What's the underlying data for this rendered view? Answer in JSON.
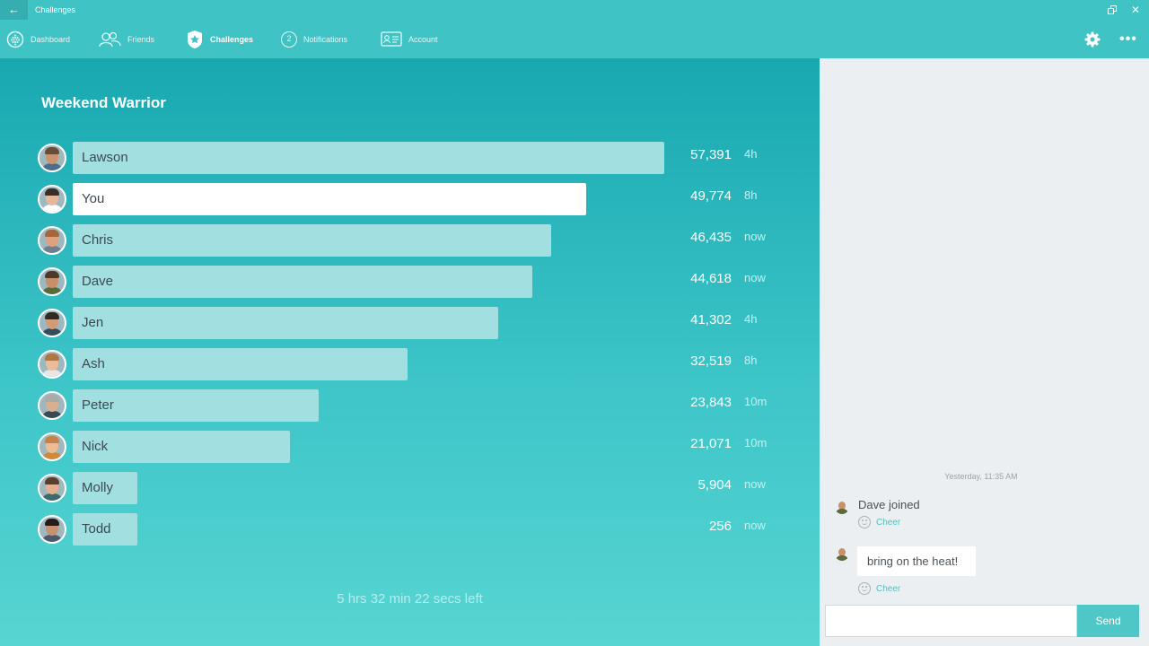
{
  "window": {
    "title": "Challenges",
    "back_glyph": "←",
    "close_glyph": "✕"
  },
  "nav": {
    "items": [
      {
        "label": "Dashboard",
        "icon": "dashboard-icon"
      },
      {
        "label": "Friends",
        "icon": "friends-icon"
      },
      {
        "label": "Challenges",
        "icon": "star-badge-icon",
        "active": true
      },
      {
        "label": "Notifications",
        "icon": "notification-count-icon",
        "badge": "2"
      },
      {
        "label": "Account",
        "icon": "account-card-icon"
      }
    ],
    "more_glyph": "•••"
  },
  "challenge": {
    "title": "Weekend Warrior",
    "time_left": "5 hrs 32 min 22 secs left",
    "max_steps": 57391,
    "participants": [
      {
        "name": "Lawson",
        "steps_label": "57,391",
        "steps": 57391,
        "ago": "4h",
        "you": false
      },
      {
        "name": "You",
        "steps_label": "49,774",
        "steps": 49774,
        "ago": "8h",
        "you": true
      },
      {
        "name": "Chris",
        "steps_label": "46,435",
        "steps": 46435,
        "ago": "now",
        "you": false
      },
      {
        "name": "Dave",
        "steps_label": "44,618",
        "steps": 44618,
        "ago": "now",
        "you": false
      },
      {
        "name": "Jen",
        "steps_label": "41,302",
        "steps": 41302,
        "ago": "4h",
        "you": false
      },
      {
        "name": "Ash",
        "steps_label": "32,519",
        "steps": 32519,
        "ago": "8h",
        "you": false
      },
      {
        "name": "Peter",
        "steps_label": "23,843",
        "steps": 23843,
        "ago": "10m",
        "you": false
      },
      {
        "name": "Nick",
        "steps_label": "21,071",
        "steps": 21071,
        "ago": "10m",
        "you": false
      },
      {
        "name": "Molly",
        "steps_label": "5,904",
        "steps": 5904,
        "ago": "now",
        "you": false
      },
      {
        "name": "Todd",
        "steps_label": "256",
        "steps": 256,
        "ago": "now",
        "you": false
      }
    ]
  },
  "chat": {
    "timestamp": "Yesterday, 11:35 AM",
    "messages": [
      {
        "text": "Dave joined",
        "type": "event",
        "cheer": "Cheer"
      },
      {
        "text": "bring on the heat!",
        "type": "bubble",
        "cheer": "Cheer"
      }
    ],
    "input_value": "",
    "send_label": "Send"
  },
  "colors": {
    "accent": "#3fc3c4",
    "bar": "#a2dfe1",
    "you_bar": "#ffffff",
    "chat_bg": "#eceff2"
  }
}
